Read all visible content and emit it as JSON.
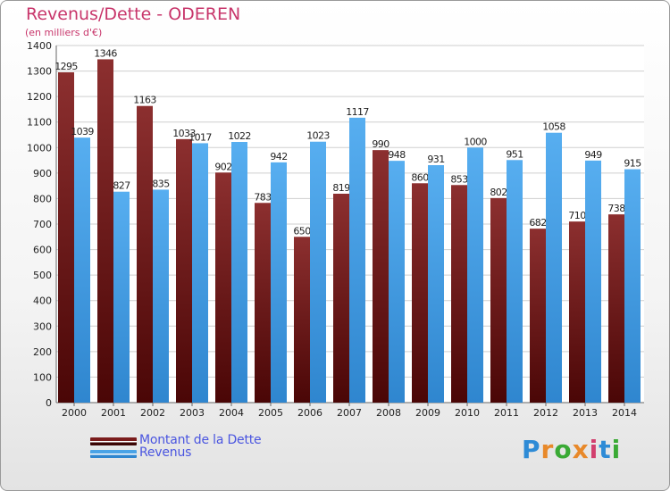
{
  "chart_data": {
    "type": "bar",
    "title": "Revenus/Dette - ODEREN",
    "subtitle": "(en milliers d'€)",
    "categories": [
      "2000",
      "2001",
      "2002",
      "2003",
      "2004",
      "2005",
      "2006",
      "2007",
      "2008",
      "2009",
      "2010",
      "2011",
      "2012",
      "2013",
      "2014"
    ],
    "series": [
      {
        "name": "Montant de la Dette",
        "color": "#7a1c1c",
        "values": [
          1295,
          1346,
          1163,
          1033,
          902,
          783,
          650,
          819,
          990,
          860,
          853,
          802,
          682,
          710,
          738
        ]
      },
      {
        "name": "Revenus",
        "color": "#4aa3e6",
        "values": [
          1039,
          827,
          835,
          1017,
          1022,
          942,
          1023,
          1117,
          948,
          931,
          1000,
          951,
          1058,
          949,
          915
        ]
      }
    ],
    "ylim": [
      0,
      1400
    ],
    "yticks": [
      0,
      100,
      200,
      300,
      400,
      500,
      600,
      700,
      800,
      900,
      1000,
      1100,
      1200,
      1300,
      1400
    ],
    "grid": true,
    "legend": "bottom-left"
  },
  "logo": {
    "text": "Proxiti",
    "colors": [
      "#2e8bd6",
      "#e8892a",
      "#3aaa35",
      "#e8892a",
      "#d23f6e",
      "#2e8bd6",
      "#3aaa35"
    ]
  }
}
